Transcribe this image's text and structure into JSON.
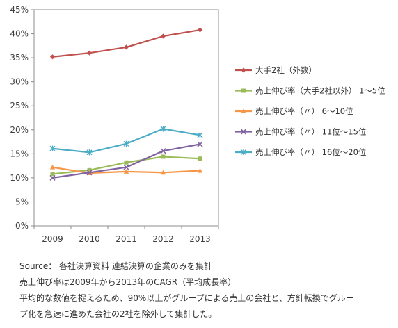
{
  "chart_data": {
    "type": "line",
    "title": "",
    "xlabel": "",
    "ylabel": "",
    "x": [
      "2009",
      "2010",
      "2011",
      "2012",
      "2013"
    ],
    "y_ticks": [
      "0%",
      "5%",
      "10%",
      "15%",
      "20%",
      "25%",
      "30%",
      "35%",
      "40%",
      "45%"
    ],
    "ylim": [
      0,
      45
    ],
    "grid": false,
    "legend_position": "right",
    "series": [
      {
        "name": "大手2社（外数）",
        "marker": "diamond",
        "color": "#c0504d",
        "values": [
          35.2,
          36.0,
          37.2,
          39.5,
          40.8
        ]
      },
      {
        "name": "売上伸び率（大手2社以外） 1～5位",
        "marker": "square",
        "color": "#9bbb59",
        "values": [
          10.8,
          11.6,
          13.2,
          14.4,
          14.0
        ]
      },
      {
        "name": "売上伸び率（〃） 6～10位",
        "marker": "triangle",
        "color": "#f79646",
        "values": [
          12.2,
          11.0,
          11.3,
          11.1,
          11.5
        ]
      },
      {
        "name": "売上伸び率（〃） 11位～15位",
        "marker": "x",
        "color": "#8064a2",
        "values": [
          10.0,
          11.1,
          12.2,
          15.6,
          17.0
        ]
      },
      {
        "name": "売上伸び率（〃） 16位～20位",
        "marker": "star",
        "color": "#4bacc6",
        "values": [
          16.1,
          15.3,
          17.1,
          20.2,
          18.9
        ]
      }
    ]
  },
  "notes": [
    "Source： 各社決算資料 連結決算の企業のみを集計",
    "売上伸び率は2009年から2013年のCAGR（平均成長率）",
    "平均的な数値を捉えるため、90%以上がグループによる売上の会社と、方針転換でグルー",
    "プ化を急速に進めた会社の2社を除外して集計した。"
  ]
}
